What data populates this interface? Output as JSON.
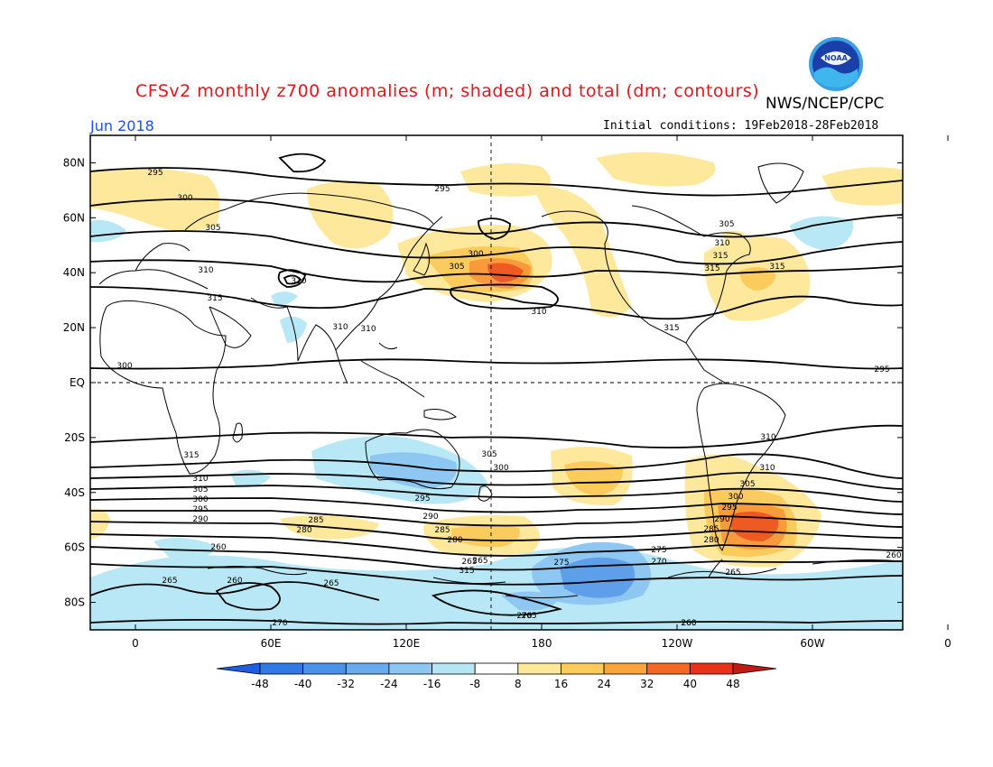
{
  "header": {
    "title": "CFSv2 monthly z700 anomalies (m; shaded) and total (dm; contours)",
    "agency": "NWS/NCEP/CPC",
    "month": "Jun 2018",
    "initial_conditions": "Initial conditions: 19Feb2018-28Feb2018",
    "logo_text": "NOAA"
  },
  "map": {
    "projection": "cylindrical equidistant",
    "lon_labels": [
      "0",
      "60E",
      "120E",
      "180",
      "120W",
      "60W",
      "0"
    ],
    "lat_labels": [
      "80N",
      "60N",
      "40N",
      "20N",
      "EQ",
      "20S",
      "40S",
      "60S",
      "80S"
    ],
    "grid": "dashed gridlines every 20 degrees latitude and 60 degrees longitude",
    "contour_labels": [
      "295",
      "300",
      "305",
      "310",
      "315",
      "310",
      "310",
      "310",
      "300",
      "305",
      "295",
      "310",
      "315",
      "315",
      "295",
      "300",
      "305",
      "310",
      "315",
      "315",
      "315",
      "310",
      "310",
      "305",
      "300",
      "295",
      "290",
      "285",
      "280",
      "275",
      "270",
      "265",
      "260",
      "305",
      "300",
      "295",
      "290",
      "285",
      "280",
      "265",
      "315",
      "310",
      "305",
      "300",
      "295",
      "290",
      "285",
      "280",
      "275",
      "270",
      "260",
      "265",
      "260",
      "265",
      "270",
      "260",
      "265",
      "265",
      "260"
    ]
  },
  "colorbar": {
    "ticks": [
      "-48",
      "-40",
      "-32",
      "-24",
      "-16",
      "-8",
      "8",
      "16",
      "24",
      "32",
      "40",
      "48"
    ],
    "colors": [
      "#1e5fe0",
      "#2f7ae6",
      "#4a93ec",
      "#6aabf0",
      "#8ec6f3",
      "#b6e6f4",
      "#ffffff",
      "#fee89a",
      "#fdcb5a",
      "#fba43c",
      "#f46a24",
      "#e8321a",
      "#c41a14"
    ]
  },
  "anomaly_colors": {
    "pos1": "#fde89c",
    "pos2": "#fccb5e",
    "pos3": "#f99b3b",
    "pos4": "#ef5a22",
    "neg1": "#b8e8f5",
    "neg2": "#8ec8f2",
    "neg3": "#5f9fea",
    "neg4": "#3b78df"
  }
}
